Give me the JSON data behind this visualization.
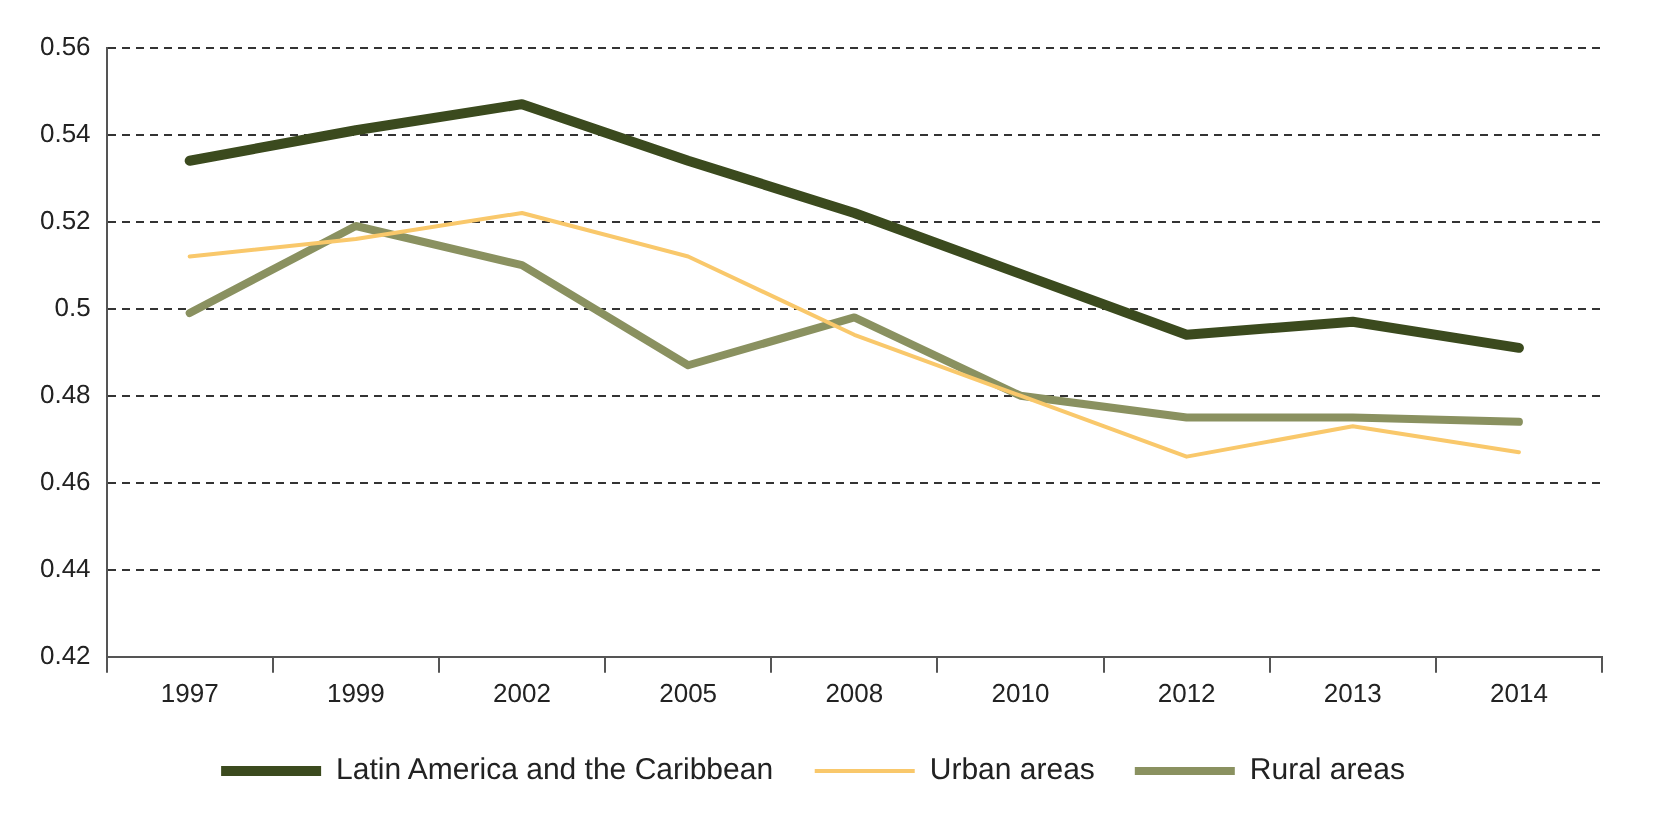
{
  "chart_data": {
    "type": "line",
    "categories": [
      "1997",
      "1999",
      "2002",
      "2005",
      "2008",
      "2010",
      "2012",
      "2013",
      "2014"
    ],
    "series": [
      {
        "name": "Latin America and the Caribbean",
        "color": "#3b4a1e",
        "values": [
          0.534,
          0.541,
          0.547,
          0.534,
          0.522,
          0.508,
          0.494,
          0.497,
          0.491
        ]
      },
      {
        "name": "Urban areas",
        "color": "#f9c86b",
        "values": [
          0.512,
          0.516,
          0.522,
          0.512,
          0.494,
          0.48,
          0.466,
          0.473,
          0.467
        ]
      },
      {
        "name": "Rural areas",
        "color": "#8a9160",
        "values": [
          0.499,
          0.519,
          0.51,
          0.487,
          0.498,
          0.48,
          0.475,
          0.475,
          0.474
        ]
      }
    ],
    "ylim": [
      0.42,
      0.56
    ],
    "yticks": [
      0.42,
      0.44,
      0.46,
      0.48,
      0.5,
      0.52,
      0.54,
      0.56
    ],
    "grid": "y",
    "legend": "bottom",
    "marker": "none",
    "line_style": "solid"
  }
}
